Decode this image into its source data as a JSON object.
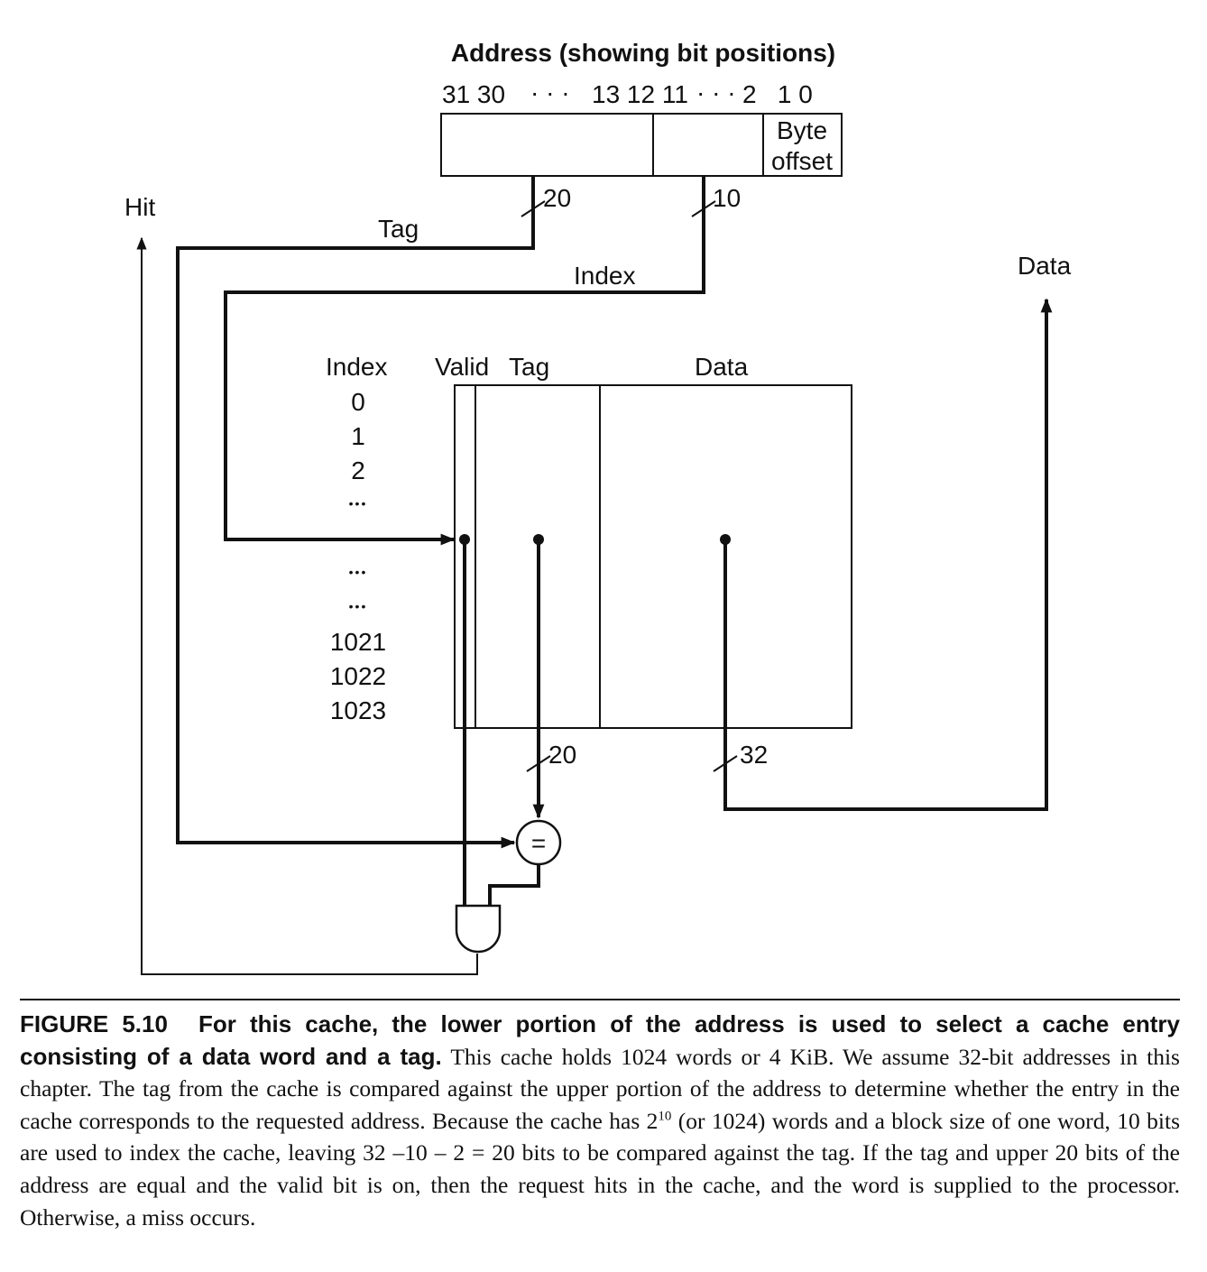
{
  "address": {
    "title": "Address (showing bit positions)",
    "bits_high": "31 30",
    "bits_dots_1": "· · ·",
    "bits_mid": "13 12 11",
    "bits_dots_2": "· · ·",
    "bits_low": "2   1 0",
    "byte_offset_line1": "Byte",
    "byte_offset_line2": "offset"
  },
  "wires": {
    "tag_label": "Tag",
    "tag_width": "20",
    "index_label": "Index",
    "index_width": "10",
    "hit_label": "Hit",
    "data_label": "Data",
    "tag_compare_width": "20",
    "data_width": "32",
    "comparator_symbol": "="
  },
  "cache": {
    "col_index": "Index",
    "col_valid": "Valid",
    "col_tag": "Tag",
    "col_data": "Data",
    "row_labels": [
      "0",
      "1",
      "2",
      "•••",
      "",
      "•••",
      "•••",
      "1021",
      "1022",
      "1023"
    ],
    "selected_row_color": "#c8c8c8"
  },
  "caption": {
    "figure_label": "FIGURE 5.10",
    "title": "For this cache, the lower portion of the address is used to select a cache entry consisting of a data word and a tag.",
    "body_1": "This cache holds 1024 words or 4 KiB. We assume 32-bit addresses in this chapter. The tag from the cache is compared against the upper portion of the address to determine whether the entry in the cache corresponds to the requested address. Because the cache has 2",
    "body_sup": "10",
    "body_2": "(or 1024) words and a block size of one word, 10 bits are used to index the cache, leaving 32 –10 – 2 = 20 bits to be compared against the tag. If the tag and upper 20 bits of the address are equal and the valid bit is on, then the request hits in the cache, and the word is supplied to the processor. Otherwise, a miss occurs."
  }
}
